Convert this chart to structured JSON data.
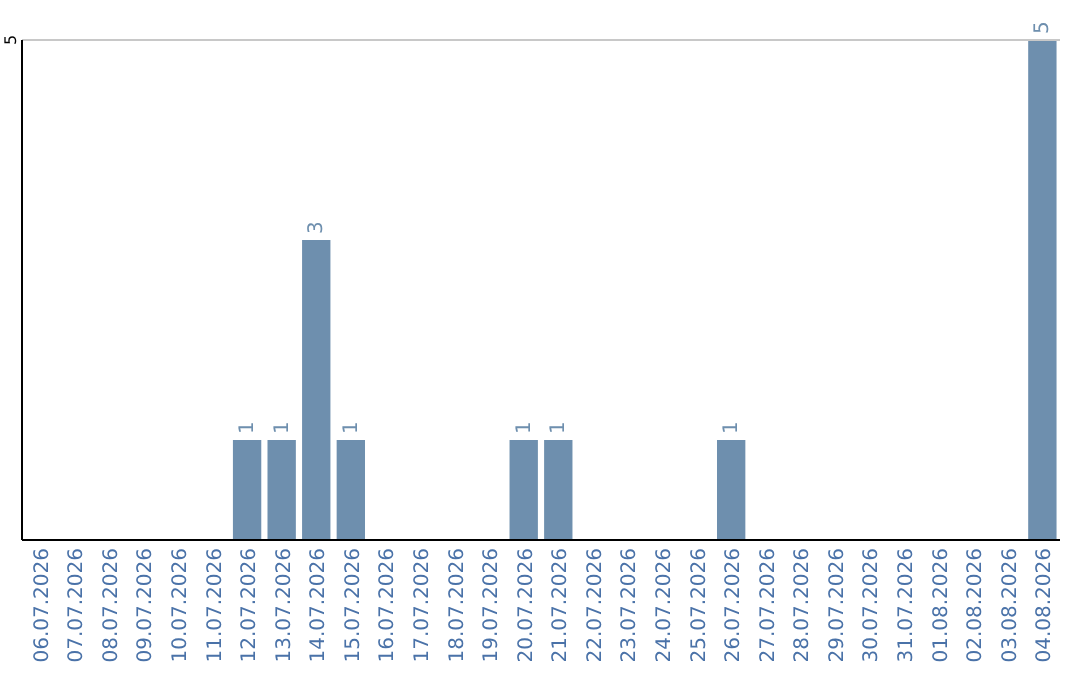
{
  "chart_data": {
    "type": "bar",
    "categories": [
      "06.07.2026",
      "07.07.2026",
      "08.07.2026",
      "09.07.2026",
      "10.07.2026",
      "11.07.2026",
      "12.07.2026",
      "13.07.2026",
      "14.07.2026",
      "15.07.2026",
      "16.07.2026",
      "17.07.2026",
      "18.07.2026",
      "19.07.2026",
      "20.07.2026",
      "21.07.2026",
      "22.07.2026",
      "23.07.2026",
      "24.07.2026",
      "25.07.2026",
      "26.07.2026",
      "27.07.2026",
      "28.07.2026",
      "29.07.2026",
      "30.07.2026",
      "31.07.2026",
      "01.08.2026",
      "02.08.2026",
      "03.08.2026",
      "04.08.2026"
    ],
    "values": [
      0,
      0,
      0,
      0,
      0,
      0,
      1,
      1,
      3,
      1,
      0,
      0,
      0,
      0,
      1,
      1,
      0,
      0,
      0,
      0,
      1,
      0,
      0,
      0,
      0,
      0,
      0,
      0,
      0,
      5
    ],
    "value_labels": [
      null,
      null,
      null,
      null,
      null,
      null,
      "1",
      "1",
      "3",
      "1",
      null,
      null,
      null,
      null,
      "1",
      "1",
      null,
      null,
      null,
      null,
      "1",
      null,
      null,
      null,
      null,
      null,
      null,
      null,
      null,
      "5"
    ],
    "color": "#6e8fae",
    "ylim": [
      0,
      5
    ],
    "yticks": [
      5
    ]
  }
}
